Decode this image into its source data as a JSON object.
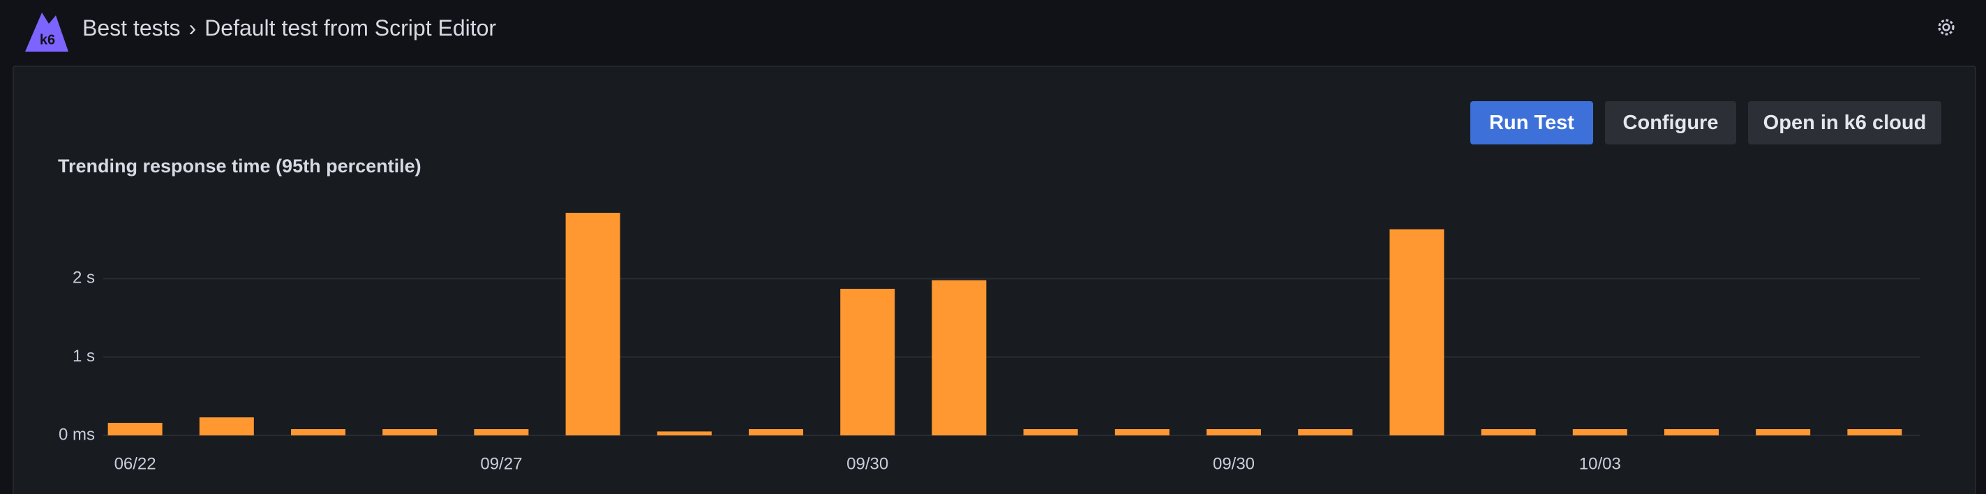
{
  "header": {
    "logo": "k6",
    "breadcrumb": [
      "Best tests",
      "›",
      "Default test from Script Editor"
    ]
  },
  "buttons": [
    "Run Test",
    "Configure",
    "Open in k6 cloud"
  ],
  "chart_data": {
    "type": "bar",
    "title": "Trending response time (95th percentile)",
    "categories": [
      "06/22",
      null,
      null,
      null,
      "09/27",
      null,
      null,
      null,
      "09/30",
      null,
      null,
      null,
      "09/30",
      null,
      null,
      null,
      "10/03",
      null,
      null,
      null
    ],
    "values": [
      0.16,
      0.23,
      0.08,
      0.08,
      0.08,
      2.84,
      0.05,
      0.08,
      1.87,
      1.98,
      0.08,
      0.08,
      0.08,
      0.08,
      2.63,
      0.08,
      0.08,
      0.08,
      0.08,
      0.08
    ],
    "color": "#ff9830",
    "ylim": [
      0,
      3
    ],
    "yticks": [
      {
        "value": 0,
        "label": "0 ms"
      },
      {
        "value": 1,
        "label": "1 s"
      },
      {
        "value": 2,
        "label": "2 s"
      }
    ],
    "grid": true
  }
}
